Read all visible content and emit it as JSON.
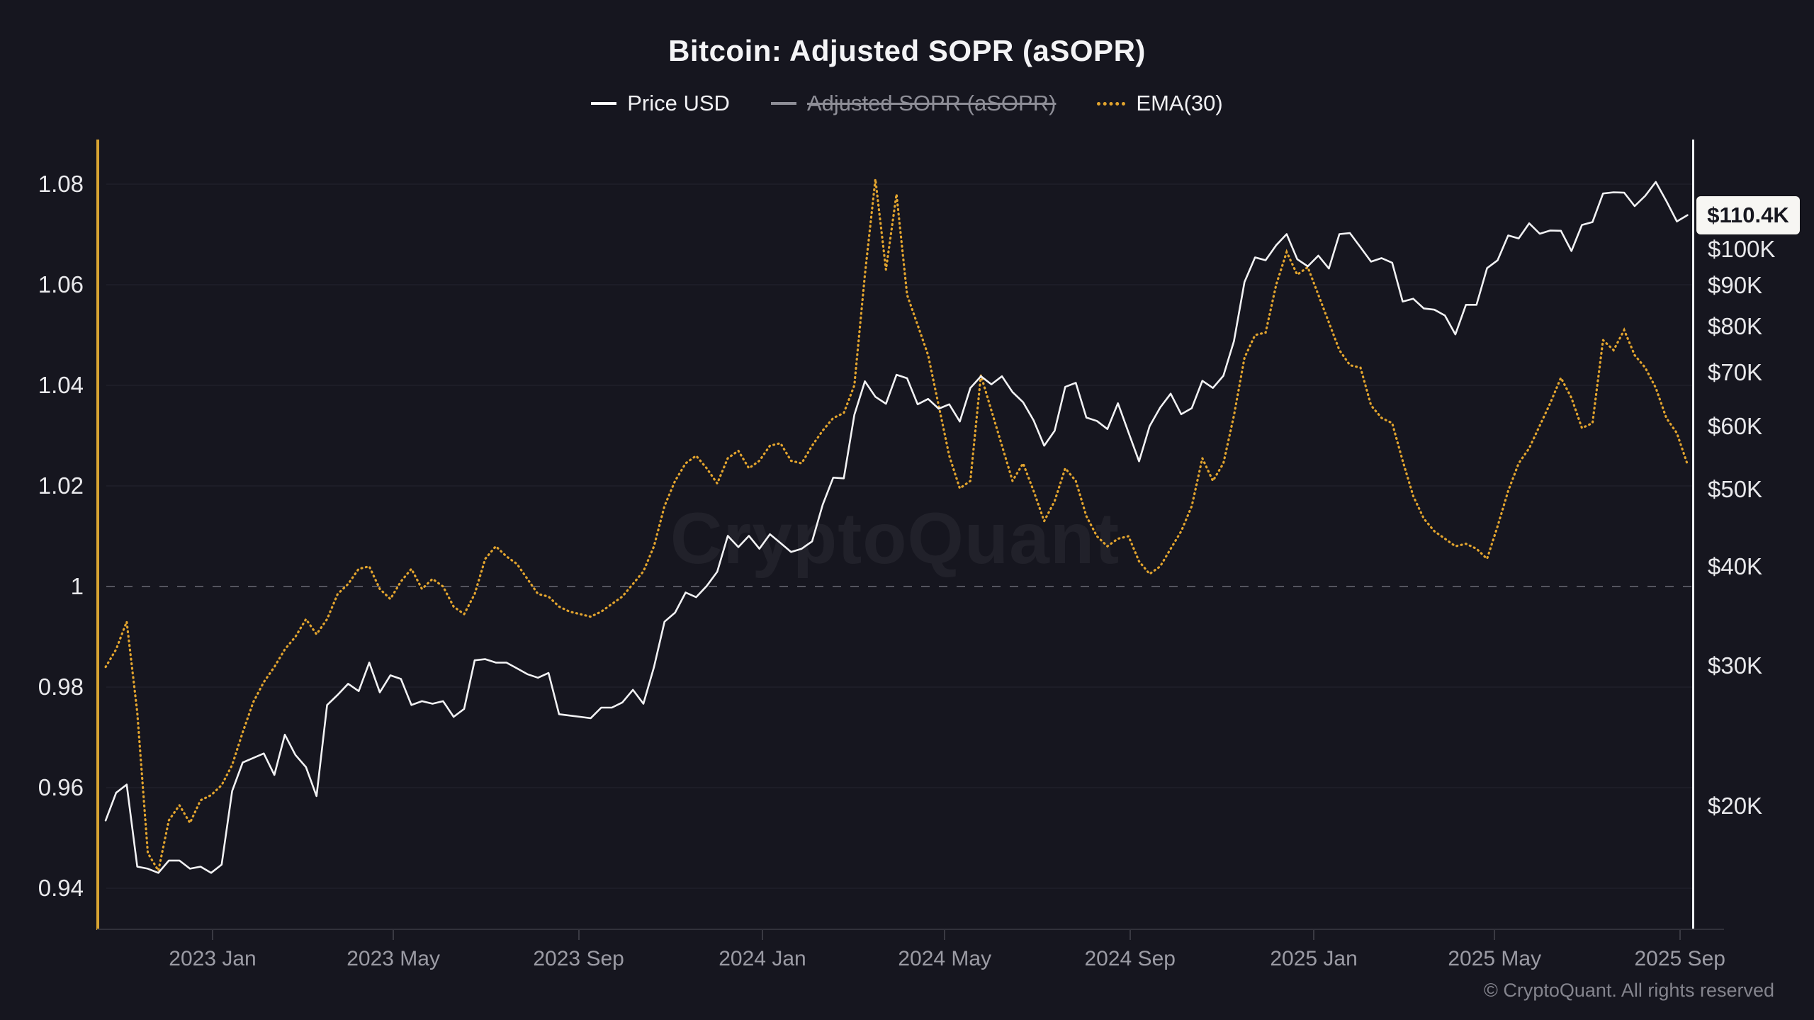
{
  "title": "Bitcoin: Adjusted SOPR (aSOPR)",
  "watermark": "CryptoQuant",
  "footer": {
    "copyright": "© CryptoQuant. All rights reserved"
  },
  "price_badge": {
    "label": "$110.4K",
    "value": 110.4
  },
  "legend": [
    {
      "label": "Price USD",
      "state": "active",
      "swatch": "white-line",
      "color": "#f2f2f4"
    },
    {
      "label": "Adjusted SOPR (aSOPR)",
      "state": "disabled",
      "swatch": "gray-line",
      "color": "#8e8e97"
    },
    {
      "label": "EMA(30)",
      "state": "active",
      "swatch": "orange-dots",
      "color": "#e2a42e"
    }
  ],
  "axes": {
    "left": {
      "ticks": [
        {
          "label": "1.08",
          "v": 1.08
        },
        {
          "label": "1.06",
          "v": 1.06
        },
        {
          "label": "1.04",
          "v": 1.04
        },
        {
          "label": "1.02",
          "v": 1.02
        },
        {
          "label": "1",
          "v": 1.0
        },
        {
          "label": "0.98",
          "v": 0.98
        },
        {
          "label": "0.96",
          "v": 0.96
        },
        {
          "label": "0.94",
          "v": 0.94
        }
      ],
      "baseline_value": 1
    },
    "right": {
      "ticks": [
        {
          "label": "$100K",
          "v": 100
        },
        {
          "label": "$90K",
          "v": 90
        },
        {
          "label": "$80K",
          "v": 80
        },
        {
          "label": "$70K",
          "v": 70
        },
        {
          "label": "$60K",
          "v": 60
        },
        {
          "label": "$50K",
          "v": 50
        },
        {
          "label": "$40K",
          "v": 40
        },
        {
          "label": "$30K",
          "v": 30
        },
        {
          "label": "$20K",
          "v": 20
        }
      ],
      "scale": "log"
    },
    "x": {
      "ticks": [
        {
          "label": "2023 Jan",
          "date": "2023-01-01"
        },
        {
          "label": "2023 May",
          "date": "2023-05-01"
        },
        {
          "label": "2023 Sep",
          "date": "2023-09-01"
        },
        {
          "label": "2024 Jan",
          "date": "2024-01-01"
        },
        {
          "label": "2024 May",
          "date": "2024-05-01"
        },
        {
          "label": "2024 Sep",
          "date": "2024-09-01"
        },
        {
          "label": "2025 Jan",
          "date": "2025-01-01"
        },
        {
          "label": "2025 May",
          "date": "2025-05-01"
        },
        {
          "label": "2025 Sep",
          "date": "2025-09-01"
        }
      ]
    }
  },
  "chart_data": {
    "type": "line",
    "title": "Bitcoin: Adjusted SOPR (aSOPR)",
    "x": {
      "start_date": "2022-10-22",
      "interval_days": 7,
      "tick_labels": [
        "2023 Jan",
        "2023 May",
        "2023 Sep",
        "2024 Jan",
        "2024 May",
        "2024 Sep",
        "2025 Jan",
        "2025 May",
        "2025 Sep"
      ]
    },
    "left_ylim": [
      0.933,
      1.092
    ],
    "right_axis": {
      "scale": "log",
      "unit": "USD (thousands)",
      "last_value_label": "$110.4K"
    },
    "grid": true,
    "legend_position": "top",
    "series": [
      {
        "name": "Price USD",
        "axis": "right",
        "color": "#f2f2f4",
        "style": "solid",
        "values": [
          19.2,
          20.8,
          21.3,
          16.8,
          16.7,
          16.5,
          17.1,
          17.1,
          16.7,
          16.8,
          16.5,
          16.9,
          20.9,
          22.7,
          23.0,
          23.3,
          21.9,
          24.6,
          23.2,
          22.4,
          20.6,
          26.8,
          27.6,
          28.5,
          27.9,
          30.3,
          27.8,
          29.2,
          28.9,
          26.8,
          27.1,
          26.9,
          27.1,
          25.9,
          26.5,
          30.5,
          30.6,
          30.3,
          30.3,
          29.8,
          29.3,
          29.0,
          29.4,
          26.1,
          26.0,
          25.9,
          25.8,
          26.6,
          26.6,
          27.0,
          28.0,
          26.9,
          29.9,
          34.1,
          35.0,
          37.1,
          36.6,
          37.8,
          39.4,
          43.7,
          42.3,
          43.7,
          42.1,
          43.9,
          42.8,
          41.7,
          42.1,
          43.0,
          47.8,
          51.7,
          51.6,
          62.0,
          68.3,
          65.3,
          64.0,
          69.6,
          68.9,
          63.9,
          64.9,
          63.1,
          63.9,
          60.8,
          67.0,
          69.3,
          67.7,
          69.3,
          66.2,
          64.3,
          61.0,
          56.7,
          59.2,
          67.2,
          68.0,
          61.5,
          60.9,
          59.5,
          64.1,
          58.9,
          54.2,
          60.0,
          63.3,
          65.9,
          62.1,
          63.2,
          68.4,
          67.0,
          69.4,
          76.7,
          91.0,
          97.7,
          96.9,
          101.2,
          104.5,
          97.2,
          95.2,
          98.2,
          94.6,
          104.5,
          104.8,
          100.6,
          96.5,
          97.5,
          96.2,
          86.0,
          86.7,
          84.3,
          84.0,
          82.6,
          78.2,
          85.2,
          85.2,
          94.7,
          96.9,
          104.1,
          103.2,
          107.8,
          104.6,
          105.6,
          105.5,
          99.5,
          107.3,
          108.2,
          117.5,
          117.9,
          117.8,
          113.3,
          116.7,
          121.5,
          115.0,
          108.4,
          110.4
        ]
      },
      {
        "name": "Adjusted SOPR (aSOPR)",
        "axis": "left",
        "color": "#8e8e97",
        "style": "solid",
        "visible": false,
        "values": []
      },
      {
        "name": "EMA(30)",
        "axis": "left",
        "color": "#e2a42e",
        "style": "dotted",
        "values": [
          0.984,
          0.9875,
          0.993,
          0.975,
          0.947,
          0.9435,
          0.9535,
          0.9565,
          0.953,
          0.9575,
          0.9585,
          0.9605,
          0.9645,
          0.971,
          0.977,
          0.981,
          0.984,
          0.9875,
          0.99,
          0.9935,
          0.9905,
          0.9935,
          0.9985,
          1.0005,
          1.0035,
          1.004,
          0.9995,
          0.9975,
          1.001,
          1.0035,
          0.9995,
          1.0015,
          1.0,
          0.996,
          0.9945,
          0.9985,
          1.0055,
          1.008,
          1.006,
          1.0045,
          1.0015,
          0.9985,
          0.998,
          0.996,
          0.995,
          0.9945,
          0.994,
          0.995,
          0.9965,
          0.998,
          1.0005,
          1.003,
          1.008,
          1.016,
          1.021,
          1.0245,
          1.026,
          1.0235,
          1.0205,
          1.0255,
          1.027,
          1.0235,
          1.025,
          1.028,
          1.0285,
          1.025,
          1.0245,
          1.028,
          1.031,
          1.0335,
          1.0345,
          1.04,
          1.062,
          1.081,
          1.063,
          1.078,
          1.058,
          1.052,
          1.046,
          1.036,
          1.026,
          1.0195,
          1.021,
          1.042,
          1.035,
          1.028,
          1.021,
          1.0245,
          1.019,
          1.013,
          1.017,
          1.0235,
          1.021,
          1.014,
          1.01,
          1.008,
          1.0095,
          1.01,
          1.005,
          1.0025,
          1.004,
          1.0075,
          1.011,
          1.016,
          1.0255,
          1.021,
          1.0245,
          1.034,
          1.0455,
          1.05,
          1.0505,
          1.06,
          1.0665,
          1.062,
          1.0635,
          1.058,
          1.0525,
          1.047,
          1.044,
          1.0435,
          1.036,
          1.0335,
          1.0325,
          1.025,
          1.018,
          1.0135,
          1.011,
          1.0095,
          1.008,
          1.0085,
          1.0075,
          1.0055,
          1.012,
          1.019,
          1.0245,
          1.0275,
          1.032,
          1.0365,
          1.0415,
          1.0375,
          1.0315,
          1.0325,
          1.049,
          1.047,
          1.051,
          1.046,
          1.0435,
          1.0395,
          1.0335,
          1.0305,
          1.0243
        ]
      }
    ]
  }
}
